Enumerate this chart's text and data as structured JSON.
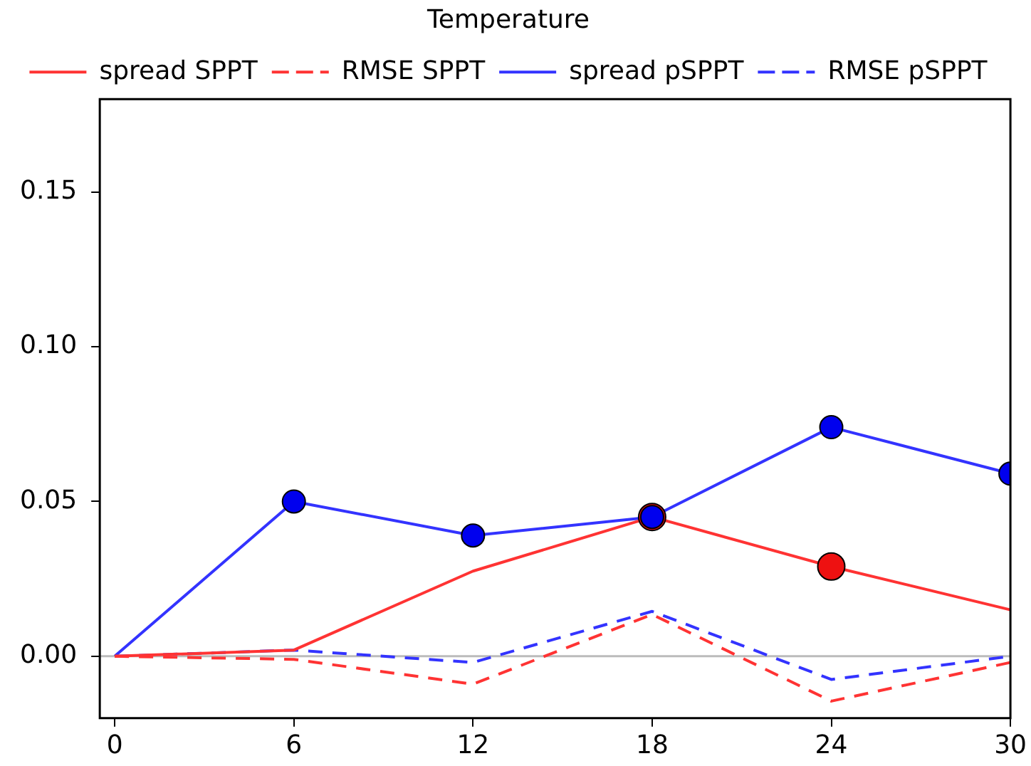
{
  "chart_data": {
    "type": "line",
    "title": "Temperature",
    "x": [
      0,
      6,
      12,
      18,
      24,
      30
    ],
    "series": [
      {
        "name": "spread SPPT",
        "color": "#ff3333",
        "values": [
          0,
          0.002,
          0.0275,
          0.045,
          0.029,
          0.015
        ]
      },
      {
        "name": "RMSE SPPT",
        "color": "#ff3333",
        "line_style": "dashed",
        "values": [
          0,
          -0.001,
          -0.009,
          0.0135,
          -0.0145,
          -0.002
        ]
      },
      {
        "name": "spread pSPPT",
        "color": "#3333ff",
        "values": [
          0,
          0.05,
          0.039,
          0.045,
          0.074,
          0.059
        ]
      },
      {
        "name": "RMSE pSPPT",
        "color": "#3333ff",
        "line_style": "dashed",
        "values": [
          0,
          0.002,
          -0.002,
          0.0145,
          -0.0075,
          0
        ]
      },
      {
        "type": "scatter",
        "color": "#ee1111",
        "marker": "circle",
        "x": [
          18,
          24
        ],
        "values": [
          0.045,
          0.029
        ]
      },
      {
        "type": "scatter",
        "color": "#0000ee",
        "marker": "circle",
        "x": [
          6,
          12,
          18,
          24,
          30
        ],
        "values": [
          0.05,
          0.039,
          0.045,
          0.074,
          0.059
        ]
      }
    ],
    "xlim": [
      -0.5,
      30
    ],
    "xticks": [
      0,
      6,
      12,
      18,
      24,
      30
    ],
    "ylim": [
      -0.02,
      0.18
    ],
    "yticks": [
      {
        "value": 0,
        "label": "0.00"
      },
      {
        "value": 0.05,
        "label": "0.05"
      },
      {
        "value": 0.1,
        "label": "0.10"
      },
      {
        "value": 0.15,
        "label": "0.15"
      }
    ],
    "ref_lines": [
      {
        "axis": "y",
        "value": 0,
        "color": "#bbbbbb"
      }
    ],
    "legend": "top",
    "marker": "none",
    "grid": false
  }
}
